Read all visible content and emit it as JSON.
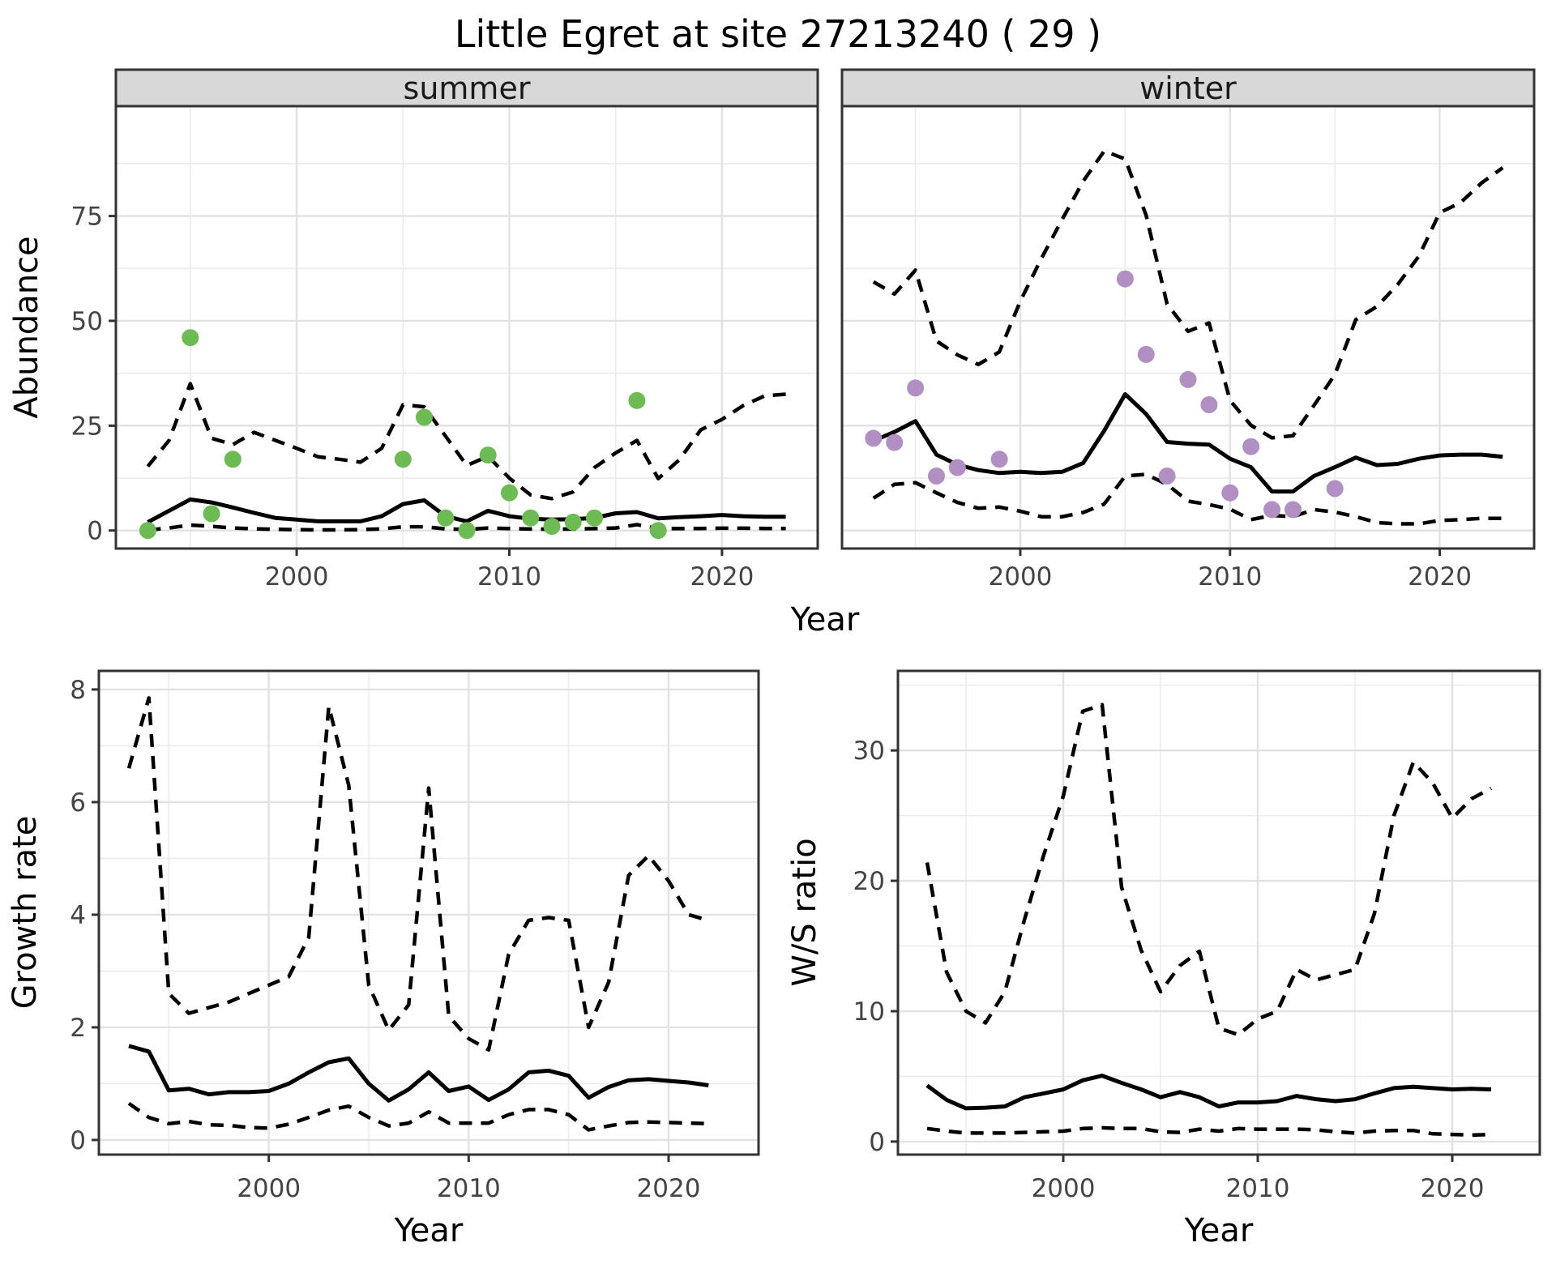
{
  "title": "Little Egret at site 27213240 ( 29 )",
  "labels": {
    "abundance": "Abundance",
    "year": "Year",
    "growth_rate": "Growth rate",
    "ws_ratio": "W/S ratio"
  },
  "colors": {
    "summer_point": "#6cbc53",
    "winter_point": "#b18fc3",
    "line": "#000000",
    "grid_major": "#e2e2e2",
    "grid_minor": "#ececec",
    "border": "#333333",
    "tick_text": "#444444",
    "strip_bg": "#d8d8d8"
  },
  "chart_data": [
    {
      "id": "abundance_summer",
      "type": "line",
      "facet_label": "summer",
      "ylabel": "Abundance",
      "xlabel": "Year",
      "x_ticks": [
        2000,
        2010,
        2020
      ],
      "y_ticks": [
        0,
        25,
        50,
        75
      ],
      "xlim": [
        1991.5,
        2024.5
      ],
      "ylim": [
        -4.3,
        101.2
      ],
      "grid": true,
      "point_color": "#6cbc53",
      "observations": {
        "years": [
          1993,
          1995,
          1996,
          1997,
          2005,
          2006,
          2007,
          2008,
          2009,
          2010,
          2011,
          2012,
          2013,
          2014,
          2016,
          2017
        ],
        "values": [
          0,
          46,
          4,
          17,
          17,
          27,
          3,
          0,
          18,
          9,
          3,
          1,
          2,
          3,
          31,
          0
        ]
      },
      "series": [
        {
          "name": "fit",
          "style": "solid",
          "x": [
            1993,
            1994,
            1995,
            1996,
            1997,
            1998,
            1999,
            2000,
            2001,
            2002,
            2003,
            2004,
            2005,
            2006,
            2007,
            2008,
            2009,
            2010,
            2011,
            2012,
            2013,
            2014,
            2015,
            2016,
            2017,
            2018,
            2019,
            2020,
            2021,
            2022,
            2023
          ],
          "y": [
            2.0,
            4.7,
            7.4,
            6.7,
            5.5,
            4.2,
            3.0,
            2.6,
            2.2,
            2.2,
            2.2,
            3.4,
            6.3,
            7.2,
            3.4,
            2.2,
            4.7,
            3.4,
            2.8,
            2.6,
            2.7,
            3.0,
            4.1,
            4.4,
            2.9,
            3.2,
            3.4,
            3.7,
            3.4,
            3.3,
            3.3
          ]
        },
        {
          "name": "upper_ci",
          "style": "dashed",
          "x": [
            1993,
            1994,
            1995,
            1996,
            1997,
            1998,
            1999,
            2000,
            2001,
            2002,
            2003,
            2004,
            2005,
            2006,
            2007,
            2008,
            2009,
            2010,
            2011,
            2012,
            2013,
            2014,
            2015,
            2016,
            2017,
            2018,
            2019,
            2020,
            2021,
            2022,
            2023
          ],
          "y": [
            15.3,
            21.5,
            35,
            22,
            20.5,
            23.4,
            21.5,
            19.6,
            17.6,
            17,
            16.3,
            19.6,
            30,
            29.5,
            22.5,
            15.5,
            17.7,
            12.5,
            8.5,
            7.6,
            9.2,
            15,
            18.5,
            21.5,
            12.4,
            16.9,
            24,
            26.5,
            29.8,
            32.1,
            32.5
          ]
        },
        {
          "name": "lower_ci",
          "style": "dashed",
          "x": [
            1993,
            1994,
            1995,
            1996,
            1997,
            1998,
            1999,
            2000,
            2001,
            2002,
            2003,
            2004,
            2005,
            2006,
            2007,
            2008,
            2009,
            2010,
            2011,
            2012,
            2013,
            2014,
            2015,
            2016,
            2017,
            2018,
            2019,
            2020,
            2021,
            2022,
            2023
          ],
          "y": [
            0.1,
            0.6,
            1.3,
            1.0,
            0.6,
            0.4,
            0.3,
            0.2,
            0.15,
            0.15,
            0.2,
            0.4,
            0.9,
            0.9,
            0.4,
            0.25,
            0.6,
            0.45,
            0.35,
            0.3,
            0.35,
            0.45,
            0.6,
            1.4,
            0.45,
            0.45,
            0.5,
            0.55,
            0.55,
            0.5,
            0.5
          ]
        }
      ]
    },
    {
      "id": "abundance_winter",
      "type": "line",
      "facet_label": "winter",
      "xlabel": "Year",
      "x_ticks": [
        2000,
        2010,
        2020
      ],
      "y_ticks": [
        0,
        25,
        50,
        75
      ],
      "xlim": [
        1991.5,
        2024.5
      ],
      "ylim": [
        -4.3,
        101.2
      ],
      "grid": true,
      "point_color": "#b18fc3",
      "observations": {
        "years": [
          1993,
          1994,
          1995,
          1996,
          1997,
          1999,
          2005,
          2006,
          2007,
          2008,
          2009,
          2010,
          2011,
          2012,
          2013,
          2015
        ],
        "values": [
          22,
          21,
          34,
          13,
          15,
          17,
          60,
          42,
          13,
          36,
          30,
          9,
          20,
          5,
          5,
          10
        ]
      },
      "series": [
        {
          "name": "fit",
          "style": "solid",
          "x": [
            1993,
            1994,
            1995,
            1996,
            1997,
            1998,
            1999,
            2000,
            2001,
            2002,
            2003,
            2004,
            2005,
            2006,
            2007,
            2008,
            2009,
            2010,
            2011,
            2012,
            2013,
            2014,
            2015,
            2016,
            2017,
            2018,
            2019,
            2020,
            2021,
            2022,
            2023
          ],
          "y": [
            21.4,
            23.5,
            26.1,
            18.1,
            15.7,
            14.4,
            13.7,
            14.0,
            13.7,
            14.0,
            16.1,
            23.8,
            32.5,
            27.8,
            21.1,
            20.7,
            20.5,
            17.1,
            15.1,
            9.3,
            9.3,
            13.0,
            15.1,
            17.4,
            15.6,
            15.9,
            17.1,
            17.9,
            18.1,
            18.1,
            17.6
          ]
        },
        {
          "name": "upper_ci",
          "style": "dashed",
          "x": [
            1993,
            1994,
            1995,
            1996,
            1997,
            1998,
            1999,
            2000,
            2001,
            2002,
            2003,
            2004,
            2005,
            2006,
            2007,
            2008,
            2009,
            2010,
            2011,
            2012,
            2013,
            2014,
            2015,
            2016,
            2017,
            2018,
            2019,
            2020,
            2021,
            2022,
            2023
          ],
          "y": [
            59.3,
            56.4,
            62.1,
            45.2,
            41.9,
            39.6,
            42.6,
            54.7,
            64.8,
            74.2,
            83.3,
            90.5,
            88.6,
            75.2,
            54.0,
            47.5,
            49.5,
            31,
            25.1,
            22.1,
            22.6,
            29.8,
            37.2,
            50.3,
            53.4,
            58.7,
            65.4,
            75.8,
            78.2,
            82.9,
            86.5
          ]
        },
        {
          "name": "lower_ci",
          "style": "dashed",
          "x": [
            1993,
            1994,
            1995,
            1996,
            1997,
            1998,
            1999,
            2000,
            2001,
            2002,
            2003,
            2004,
            2005,
            2006,
            2007,
            2008,
            2009,
            2010,
            2011,
            2012,
            2013,
            2014,
            2015,
            2016,
            2017,
            2018,
            2019,
            2020,
            2021,
            2022,
            2023
          ],
          "y": [
            7.7,
            11.0,
            11.4,
            9.0,
            6.7,
            5.3,
            5.6,
            4.6,
            3.3,
            3.3,
            4.3,
            6.3,
            13.0,
            13.4,
            11.0,
            7.0,
            6.2,
            5.1,
            2.6,
            3.6,
            3.3,
            5.0,
            4.4,
            3.3,
            1.9,
            1.6,
            1.6,
            2.4,
            2.6,
            2.9,
            2.9
          ]
        }
      ]
    },
    {
      "id": "growth_rate",
      "type": "line",
      "ylabel": "Growth rate",
      "xlabel": "Year",
      "x_ticks": [
        2000,
        2010,
        2020
      ],
      "y_ticks": [
        0,
        2,
        4,
        6,
        8
      ],
      "xlim": [
        1991.5,
        2024.5
      ],
      "ylim": [
        -0.26,
        8.33
      ],
      "grid": true,
      "series": [
        {
          "name": "fit",
          "style": "solid",
          "x": [
            1993,
            1994,
            1995,
            1996,
            1997,
            1998,
            1999,
            2000,
            2001,
            2002,
            2003,
            2004,
            2005,
            2006,
            2007,
            2008,
            2009,
            2010,
            2011,
            2012,
            2013,
            2014,
            2015,
            2016,
            2017,
            2018,
            2019,
            2020,
            2021,
            2022
          ],
          "y": [
            1.67,
            1.57,
            0.88,
            0.91,
            0.81,
            0.85,
            0.85,
            0.87,
            1.0,
            1.2,
            1.38,
            1.45,
            1.0,
            0.7,
            0.9,
            1.2,
            0.87,
            0.95,
            0.71,
            0.9,
            1.2,
            1.23,
            1.14,
            0.75,
            0.94,
            1.06,
            1.08,
            1.05,
            1.02,
            0.97
          ]
        },
        {
          "name": "upper_ci",
          "style": "dashed",
          "x": [
            1993,
            1994,
            1995,
            1996,
            1997,
            1998,
            1999,
            2000,
            2001,
            2002,
            2003,
            2004,
            2005,
            2006,
            2007,
            2008,
            2009,
            2010,
            2011,
            2012,
            2013,
            2014,
            2015,
            2016,
            2017,
            2018,
            2019,
            2020,
            2021,
            2022
          ],
          "y": [
            6.6,
            7.85,
            2.6,
            2.25,
            2.35,
            2.45,
            2.6,
            2.75,
            2.9,
            3.6,
            7.7,
            6.3,
            2.75,
            1.95,
            2.4,
            6.25,
            2.2,
            1.8,
            1.6,
            3.3,
            3.9,
            3.95,
            3.9,
            2.0,
            2.8,
            4.7,
            5.05,
            4.6,
            4.0,
            3.9
          ]
        },
        {
          "name": "lower_ci",
          "style": "dashed",
          "x": [
            1993,
            1994,
            1995,
            1996,
            1997,
            1998,
            1999,
            2000,
            2001,
            2002,
            2003,
            2004,
            2005,
            2006,
            2007,
            2008,
            2009,
            2010,
            2011,
            2012,
            2013,
            2014,
            2015,
            2016,
            2017,
            2018,
            2019,
            2020,
            2021,
            2022
          ],
          "y": [
            0.65,
            0.4,
            0.29,
            0.33,
            0.27,
            0.26,
            0.22,
            0.21,
            0.28,
            0.4,
            0.53,
            0.6,
            0.4,
            0.25,
            0.3,
            0.5,
            0.3,
            0.3,
            0.3,
            0.45,
            0.54,
            0.54,
            0.45,
            0.18,
            0.25,
            0.31,
            0.32,
            0.31,
            0.3,
            0.29
          ]
        }
      ]
    },
    {
      "id": "ws_ratio",
      "type": "line",
      "ylabel": "W/S ratio",
      "xlabel": "Year",
      "x_ticks": [
        2000,
        2010,
        2020
      ],
      "y_ticks": [
        0,
        10,
        20,
        30
      ],
      "xlim": [
        1991.5,
        2024.5
      ],
      "ylim": [
        -1.0,
        36.1
      ],
      "grid": true,
      "series": [
        {
          "name": "fit",
          "style": "solid",
          "x": [
            1993,
            1994,
            1995,
            1996,
            1997,
            1998,
            1999,
            2000,
            2001,
            2002,
            2003,
            2004,
            2005,
            2006,
            2007,
            2008,
            2009,
            2010,
            2011,
            2012,
            2013,
            2014,
            2015,
            2016,
            2017,
            2018,
            2019,
            2020,
            2021,
            2022
          ],
          "y": [
            4.3,
            3.2,
            2.55,
            2.6,
            2.7,
            3.4,
            3.7,
            4.0,
            4.7,
            5.05,
            4.5,
            4.0,
            3.4,
            3.8,
            3.4,
            2.7,
            3.0,
            3.0,
            3.1,
            3.5,
            3.25,
            3.1,
            3.25,
            3.7,
            4.1,
            4.2,
            4.1,
            4.0,
            4.05,
            4.0
          ]
        },
        {
          "name": "upper_ci",
          "style": "dashed",
          "x": [
            1993,
            1994,
            1995,
            1996,
            1997,
            1998,
            1999,
            2000,
            2001,
            2002,
            2003,
            2004,
            2005,
            2006,
            2007,
            2008,
            2009,
            2010,
            2011,
            2012,
            2013,
            2014,
            2015,
            2016,
            2017,
            2018,
            2019,
            2020,
            2021,
            2022
          ],
          "y": [
            21.4,
            13,
            10,
            9.1,
            11.5,
            17,
            22,
            26.5,
            33,
            33.5,
            19.5,
            14.7,
            11.5,
            13.5,
            14.6,
            8.7,
            8.2,
            9.4,
            10,
            13.2,
            12.4,
            12.8,
            13.2,
            17.5,
            25,
            29.1,
            27.5,
            24.8,
            26.3,
            27.1
          ]
        },
        {
          "name": "lower_ci",
          "style": "dashed",
          "x": [
            1993,
            1994,
            1995,
            1996,
            1997,
            1998,
            1999,
            2000,
            2001,
            2002,
            2003,
            2004,
            2005,
            2006,
            2007,
            2008,
            2009,
            2010,
            2011,
            2012,
            2013,
            2014,
            2015,
            2016,
            2017,
            2018,
            2019,
            2020,
            2021,
            2022
          ],
          "y": [
            1.0,
            0.8,
            0.65,
            0.65,
            0.65,
            0.7,
            0.75,
            0.8,
            1.0,
            1.06,
            1.0,
            1.0,
            0.75,
            0.7,
            0.95,
            0.8,
            1.0,
            0.95,
            0.95,
            0.95,
            0.9,
            0.75,
            0.65,
            0.8,
            0.85,
            0.85,
            0.6,
            0.55,
            0.5,
            0.55
          ]
        }
      ]
    }
  ]
}
